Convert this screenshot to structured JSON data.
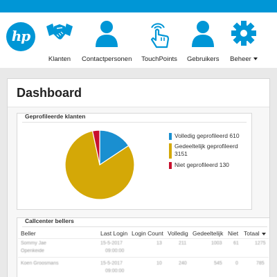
{
  "colors": {
    "brand": "#0096d6",
    "full": "#1a8fd0",
    "partial": "#d4a807",
    "none": "#c8102e"
  },
  "nav": {
    "logo_text": "hp",
    "items": [
      {
        "label": "Klanten",
        "icon": "handshake-icon"
      },
      {
        "label": "Contactpersonen",
        "icon": "person-icon"
      },
      {
        "label": "TouchPoints",
        "icon": "touch-icon"
      },
      {
        "label": "Gebruikers",
        "icon": "person-icon"
      },
      {
        "label": "Beheer",
        "icon": "gear-icon"
      }
    ]
  },
  "dashboard": {
    "title": "Dashboard"
  },
  "profiled": {
    "title": "Geprofileerde klanten",
    "chart_data": {
      "type": "pie",
      "categories": [
        "Volledig geprofileerd",
        "Gedeeltelijk geprofileerd",
        "Niet geprofileerd"
      ],
      "values": [
        610,
        3151,
        130
      ]
    },
    "legend": [
      "Volledig geprofileerd 610",
      "Gedeeltelijk geprofileerd 3151",
      "Niet geprofileerd 130"
    ]
  },
  "callcenter": {
    "title": "Callcenter bellers",
    "columns": [
      "Beller",
      "Last Login",
      "Login Count",
      "Volledig",
      "Gedeeltelijk",
      "Niet",
      "Totaal"
    ],
    "rows": [
      {
        "beller": "Sommy Jae",
        "beller2": "Openkeide",
        "last_login": "15-5-2017",
        "last_login2": "09:00:00",
        "login_count": "13",
        "volledig": "211",
        "gedeeltelijk": "1003",
        "niet": "61",
        "totaal": "1275"
      },
      {
        "beller": "Koen Groosmans",
        "beller2": "",
        "last_login": "15-5-2017",
        "last_login2": "09:00:00",
        "login_count": "10",
        "volledig": "240",
        "gedeeltelijk": "545",
        "niet": "0",
        "totaal": "785"
      }
    ]
  }
}
